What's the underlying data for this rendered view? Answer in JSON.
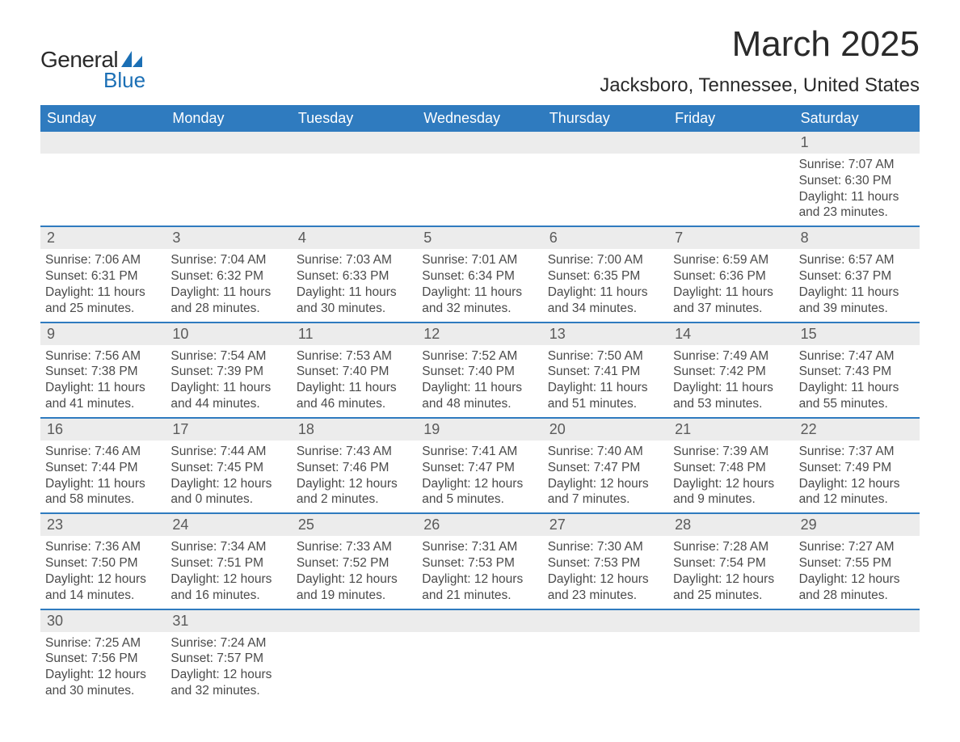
{
  "logo": {
    "text1": "General",
    "text2": "Blue",
    "accent_color": "#1b6fb5"
  },
  "title": "March 2025",
  "location": "Jacksboro, Tennessee, United States",
  "colors": {
    "header_bg": "#2f7bbf",
    "header_text": "#ffffff",
    "daynum_bg": "#ececec",
    "body_text": "#4a4a4a",
    "rule": "#2f7bbf"
  },
  "fonts": {
    "title_size_pt": 33,
    "location_size_pt": 18,
    "weekday_size_pt": 14,
    "body_size_pt": 12
  },
  "weekdays": [
    "Sunday",
    "Monday",
    "Tuesday",
    "Wednesday",
    "Thursday",
    "Friday",
    "Saturday"
  ],
  "weeks": [
    [
      {
        "n": "",
        "lines": [
          "",
          "",
          "",
          ""
        ]
      },
      {
        "n": "",
        "lines": [
          "",
          "",
          "",
          ""
        ]
      },
      {
        "n": "",
        "lines": [
          "",
          "",
          "",
          ""
        ]
      },
      {
        "n": "",
        "lines": [
          "",
          "",
          "",
          ""
        ]
      },
      {
        "n": "",
        "lines": [
          "",
          "",
          "",
          ""
        ]
      },
      {
        "n": "",
        "lines": [
          "",
          "",
          "",
          ""
        ]
      },
      {
        "n": "1",
        "lines": [
          "Sunrise: 7:07 AM",
          "Sunset: 6:30 PM",
          "Daylight: 11 hours",
          "and 23 minutes."
        ]
      }
    ],
    [
      {
        "n": "2",
        "lines": [
          "Sunrise: 7:06 AM",
          "Sunset: 6:31 PM",
          "Daylight: 11 hours",
          "and 25 minutes."
        ]
      },
      {
        "n": "3",
        "lines": [
          "Sunrise: 7:04 AM",
          "Sunset: 6:32 PM",
          "Daylight: 11 hours",
          "and 28 minutes."
        ]
      },
      {
        "n": "4",
        "lines": [
          "Sunrise: 7:03 AM",
          "Sunset: 6:33 PM",
          "Daylight: 11 hours",
          "and 30 minutes."
        ]
      },
      {
        "n": "5",
        "lines": [
          "Sunrise: 7:01 AM",
          "Sunset: 6:34 PM",
          "Daylight: 11 hours",
          "and 32 minutes."
        ]
      },
      {
        "n": "6",
        "lines": [
          "Sunrise: 7:00 AM",
          "Sunset: 6:35 PM",
          "Daylight: 11 hours",
          "and 34 minutes."
        ]
      },
      {
        "n": "7",
        "lines": [
          "Sunrise: 6:59 AM",
          "Sunset: 6:36 PM",
          "Daylight: 11 hours",
          "and 37 minutes."
        ]
      },
      {
        "n": "8",
        "lines": [
          "Sunrise: 6:57 AM",
          "Sunset: 6:37 PM",
          "Daylight: 11 hours",
          "and 39 minutes."
        ]
      }
    ],
    [
      {
        "n": "9",
        "lines": [
          "Sunrise: 7:56 AM",
          "Sunset: 7:38 PM",
          "Daylight: 11 hours",
          "and 41 minutes."
        ]
      },
      {
        "n": "10",
        "lines": [
          "Sunrise: 7:54 AM",
          "Sunset: 7:39 PM",
          "Daylight: 11 hours",
          "and 44 minutes."
        ]
      },
      {
        "n": "11",
        "lines": [
          "Sunrise: 7:53 AM",
          "Sunset: 7:40 PM",
          "Daylight: 11 hours",
          "and 46 minutes."
        ]
      },
      {
        "n": "12",
        "lines": [
          "Sunrise: 7:52 AM",
          "Sunset: 7:40 PM",
          "Daylight: 11 hours",
          "and 48 minutes."
        ]
      },
      {
        "n": "13",
        "lines": [
          "Sunrise: 7:50 AM",
          "Sunset: 7:41 PM",
          "Daylight: 11 hours",
          "and 51 minutes."
        ]
      },
      {
        "n": "14",
        "lines": [
          "Sunrise: 7:49 AM",
          "Sunset: 7:42 PM",
          "Daylight: 11 hours",
          "and 53 minutes."
        ]
      },
      {
        "n": "15",
        "lines": [
          "Sunrise: 7:47 AM",
          "Sunset: 7:43 PM",
          "Daylight: 11 hours",
          "and 55 minutes."
        ]
      }
    ],
    [
      {
        "n": "16",
        "lines": [
          "Sunrise: 7:46 AM",
          "Sunset: 7:44 PM",
          "Daylight: 11 hours",
          "and 58 minutes."
        ]
      },
      {
        "n": "17",
        "lines": [
          "Sunrise: 7:44 AM",
          "Sunset: 7:45 PM",
          "Daylight: 12 hours",
          "and 0 minutes."
        ]
      },
      {
        "n": "18",
        "lines": [
          "Sunrise: 7:43 AM",
          "Sunset: 7:46 PM",
          "Daylight: 12 hours",
          "and 2 minutes."
        ]
      },
      {
        "n": "19",
        "lines": [
          "Sunrise: 7:41 AM",
          "Sunset: 7:47 PM",
          "Daylight: 12 hours",
          "and 5 minutes."
        ]
      },
      {
        "n": "20",
        "lines": [
          "Sunrise: 7:40 AM",
          "Sunset: 7:47 PM",
          "Daylight: 12 hours",
          "and 7 minutes."
        ]
      },
      {
        "n": "21",
        "lines": [
          "Sunrise: 7:39 AM",
          "Sunset: 7:48 PM",
          "Daylight: 12 hours",
          "and 9 minutes."
        ]
      },
      {
        "n": "22",
        "lines": [
          "Sunrise: 7:37 AM",
          "Sunset: 7:49 PM",
          "Daylight: 12 hours",
          "and 12 minutes."
        ]
      }
    ],
    [
      {
        "n": "23",
        "lines": [
          "Sunrise: 7:36 AM",
          "Sunset: 7:50 PM",
          "Daylight: 12 hours",
          "and 14 minutes."
        ]
      },
      {
        "n": "24",
        "lines": [
          "Sunrise: 7:34 AM",
          "Sunset: 7:51 PM",
          "Daylight: 12 hours",
          "and 16 minutes."
        ]
      },
      {
        "n": "25",
        "lines": [
          "Sunrise: 7:33 AM",
          "Sunset: 7:52 PM",
          "Daylight: 12 hours",
          "and 19 minutes."
        ]
      },
      {
        "n": "26",
        "lines": [
          "Sunrise: 7:31 AM",
          "Sunset: 7:53 PM",
          "Daylight: 12 hours",
          "and 21 minutes."
        ]
      },
      {
        "n": "27",
        "lines": [
          "Sunrise: 7:30 AM",
          "Sunset: 7:53 PM",
          "Daylight: 12 hours",
          "and 23 minutes."
        ]
      },
      {
        "n": "28",
        "lines": [
          "Sunrise: 7:28 AM",
          "Sunset: 7:54 PM",
          "Daylight: 12 hours",
          "and 25 minutes."
        ]
      },
      {
        "n": "29",
        "lines": [
          "Sunrise: 7:27 AM",
          "Sunset: 7:55 PM",
          "Daylight: 12 hours",
          "and 28 minutes."
        ]
      }
    ],
    [
      {
        "n": "30",
        "lines": [
          "Sunrise: 7:25 AM",
          "Sunset: 7:56 PM",
          "Daylight: 12 hours",
          "and 30 minutes."
        ]
      },
      {
        "n": "31",
        "lines": [
          "Sunrise: 7:24 AM",
          "Sunset: 7:57 PM",
          "Daylight: 12 hours",
          "and 32 minutes."
        ]
      },
      {
        "n": "",
        "lines": [
          "",
          "",
          "",
          ""
        ]
      },
      {
        "n": "",
        "lines": [
          "",
          "",
          "",
          ""
        ]
      },
      {
        "n": "",
        "lines": [
          "",
          "",
          "",
          ""
        ]
      },
      {
        "n": "",
        "lines": [
          "",
          "",
          "",
          ""
        ]
      },
      {
        "n": "",
        "lines": [
          "",
          "",
          "",
          ""
        ]
      }
    ]
  ]
}
